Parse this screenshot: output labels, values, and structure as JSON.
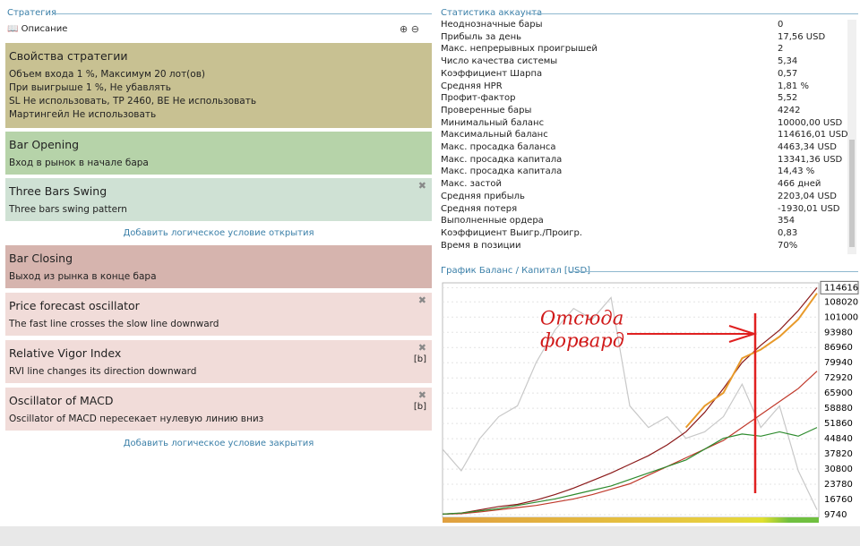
{
  "left": {
    "title": "Стратегия",
    "toolbar": "Описание",
    "properties": {
      "title": "Свойства стратегии",
      "lines": [
        "Объем входа 1 %, Максимум 20 лот(ов)",
        "При выигрыше 1 %, Не убавлять",
        "SL Не использовать,  TP 2460,  BE Не использовать",
        "Мартингейл Не использовать"
      ]
    },
    "open_blocks": [
      {
        "title": "Bar Opening",
        "text": "Вход в рынок в начале бара"
      },
      {
        "title": "Three Bars Swing",
        "text": "Three bars swing pattern"
      }
    ],
    "add_open": "Добавить логическое условие открытия",
    "close_blocks": [
      {
        "title": "Bar Closing",
        "text": "Выход из рынка в конце бара"
      },
      {
        "title": "Price forecast oscillator",
        "text": "The fast line crosses the slow line downward"
      },
      {
        "title": "Relative Vigor Index",
        "text": "RVI line changes its direction downward",
        "flag": "[b]"
      },
      {
        "title": "Oscillator of MACD",
        "text": "Oscillator of MACD пересекает нулевую линию вниз",
        "flag": "[b]"
      }
    ],
    "add_close": "Добавить логическое условие закрытия"
  },
  "stats": {
    "title": "Статистика аккаунта",
    "rows": [
      [
        "Неоднозначные бары",
        "0"
      ],
      [
        "Прибыль за день",
        "17,56 USD"
      ],
      [
        "Макс. непрерывных проигрышей",
        "2"
      ],
      [
        "Число качества системы",
        "5,34"
      ],
      [
        "Коэффициент Шарпа",
        "0,57"
      ],
      [
        "Средняя HPR",
        "1,81 %"
      ],
      [
        "Профит-фактор",
        "5,52"
      ],
      [
        "Проверенные бары",
        "4242"
      ],
      [
        "Минимальный баланс",
        "10000,00 USD"
      ],
      [
        "Максимальный баланс",
        "114616,01 USD"
      ],
      [
        "Макс. просадка баланса",
        "4463,34 USD"
      ],
      [
        "Макс. просадка капитала",
        "13341,36 USD"
      ],
      [
        "Макс. просадка капитала",
        "14,43 %"
      ],
      [
        "Макс. застой",
        "466 дней"
      ],
      [
        "Средняя прибыль",
        "2203,04 USD"
      ],
      [
        "Средняя потеря",
        "-1930,01 USD"
      ],
      [
        "Выполненные ордера",
        "354"
      ],
      [
        "Коэффициент Выигр./Проигр.",
        "0,83"
      ],
      [
        "Время в позиции",
        "70%"
      ]
    ]
  },
  "chart_data": {
    "type": "line",
    "title": "График Баланс / Капитал [USD]",
    "annotation": [
      "Отсюда",
      "форвард"
    ],
    "ylim": [
      8500,
      116000
    ],
    "yticks": [
      9740,
      16760,
      23780,
      30800,
      37820,
      44840,
      51860,
      58880,
      65900,
      72920,
      79940,
      86960,
      93980,
      101000,
      108020,
      114616
    ],
    "grid": true,
    "series": [
      {
        "color": "#c8c8c8",
        "values": [
          40000,
          30000,
          45000,
          55000,
          60000,
          80000,
          95000,
          105000,
          100000,
          110000,
          60000,
          50000,
          55000,
          45000,
          48000,
          55000,
          70000,
          50000,
          60000,
          30000,
          12000
        ]
      },
      {
        "color": "#8b1a1a",
        "values": [
          10000,
          10500,
          12000,
          13500,
          14500,
          16500,
          19000,
          22000,
          25500,
          29000,
          33000,
          37000,
          42000,
          48000,
          57000,
          68000,
          80000,
          88000,
          95000,
          104000,
          114616
        ]
      },
      {
        "color": "#c0392b",
        "values": [
          10000,
          10200,
          11000,
          12000,
          13000,
          14000,
          15500,
          17000,
          19000,
          21500,
          24000,
          28000,
          32000,
          36000,
          40000,
          44000,
          50000,
          56000,
          62000,
          68000,
          76000
        ]
      },
      {
        "color": "#2e8b2e",
        "values": [
          10000,
          10500,
          11500,
          12500,
          14000,
          15500,
          17000,
          19000,
          21000,
          23000,
          26000,
          29000,
          32000,
          35000,
          40000,
          45000,
          47000,
          46000,
          48000,
          46000,
          50000
        ]
      },
      {
        "color": "#e89a2a",
        "values": [
          null,
          null,
          null,
          null,
          null,
          null,
          null,
          null,
          null,
          null,
          null,
          null,
          null,
          50000,
          60000,
          66000,
          82000,
          86000,
          92000,
          100000,
          112000
        ]
      }
    ]
  }
}
